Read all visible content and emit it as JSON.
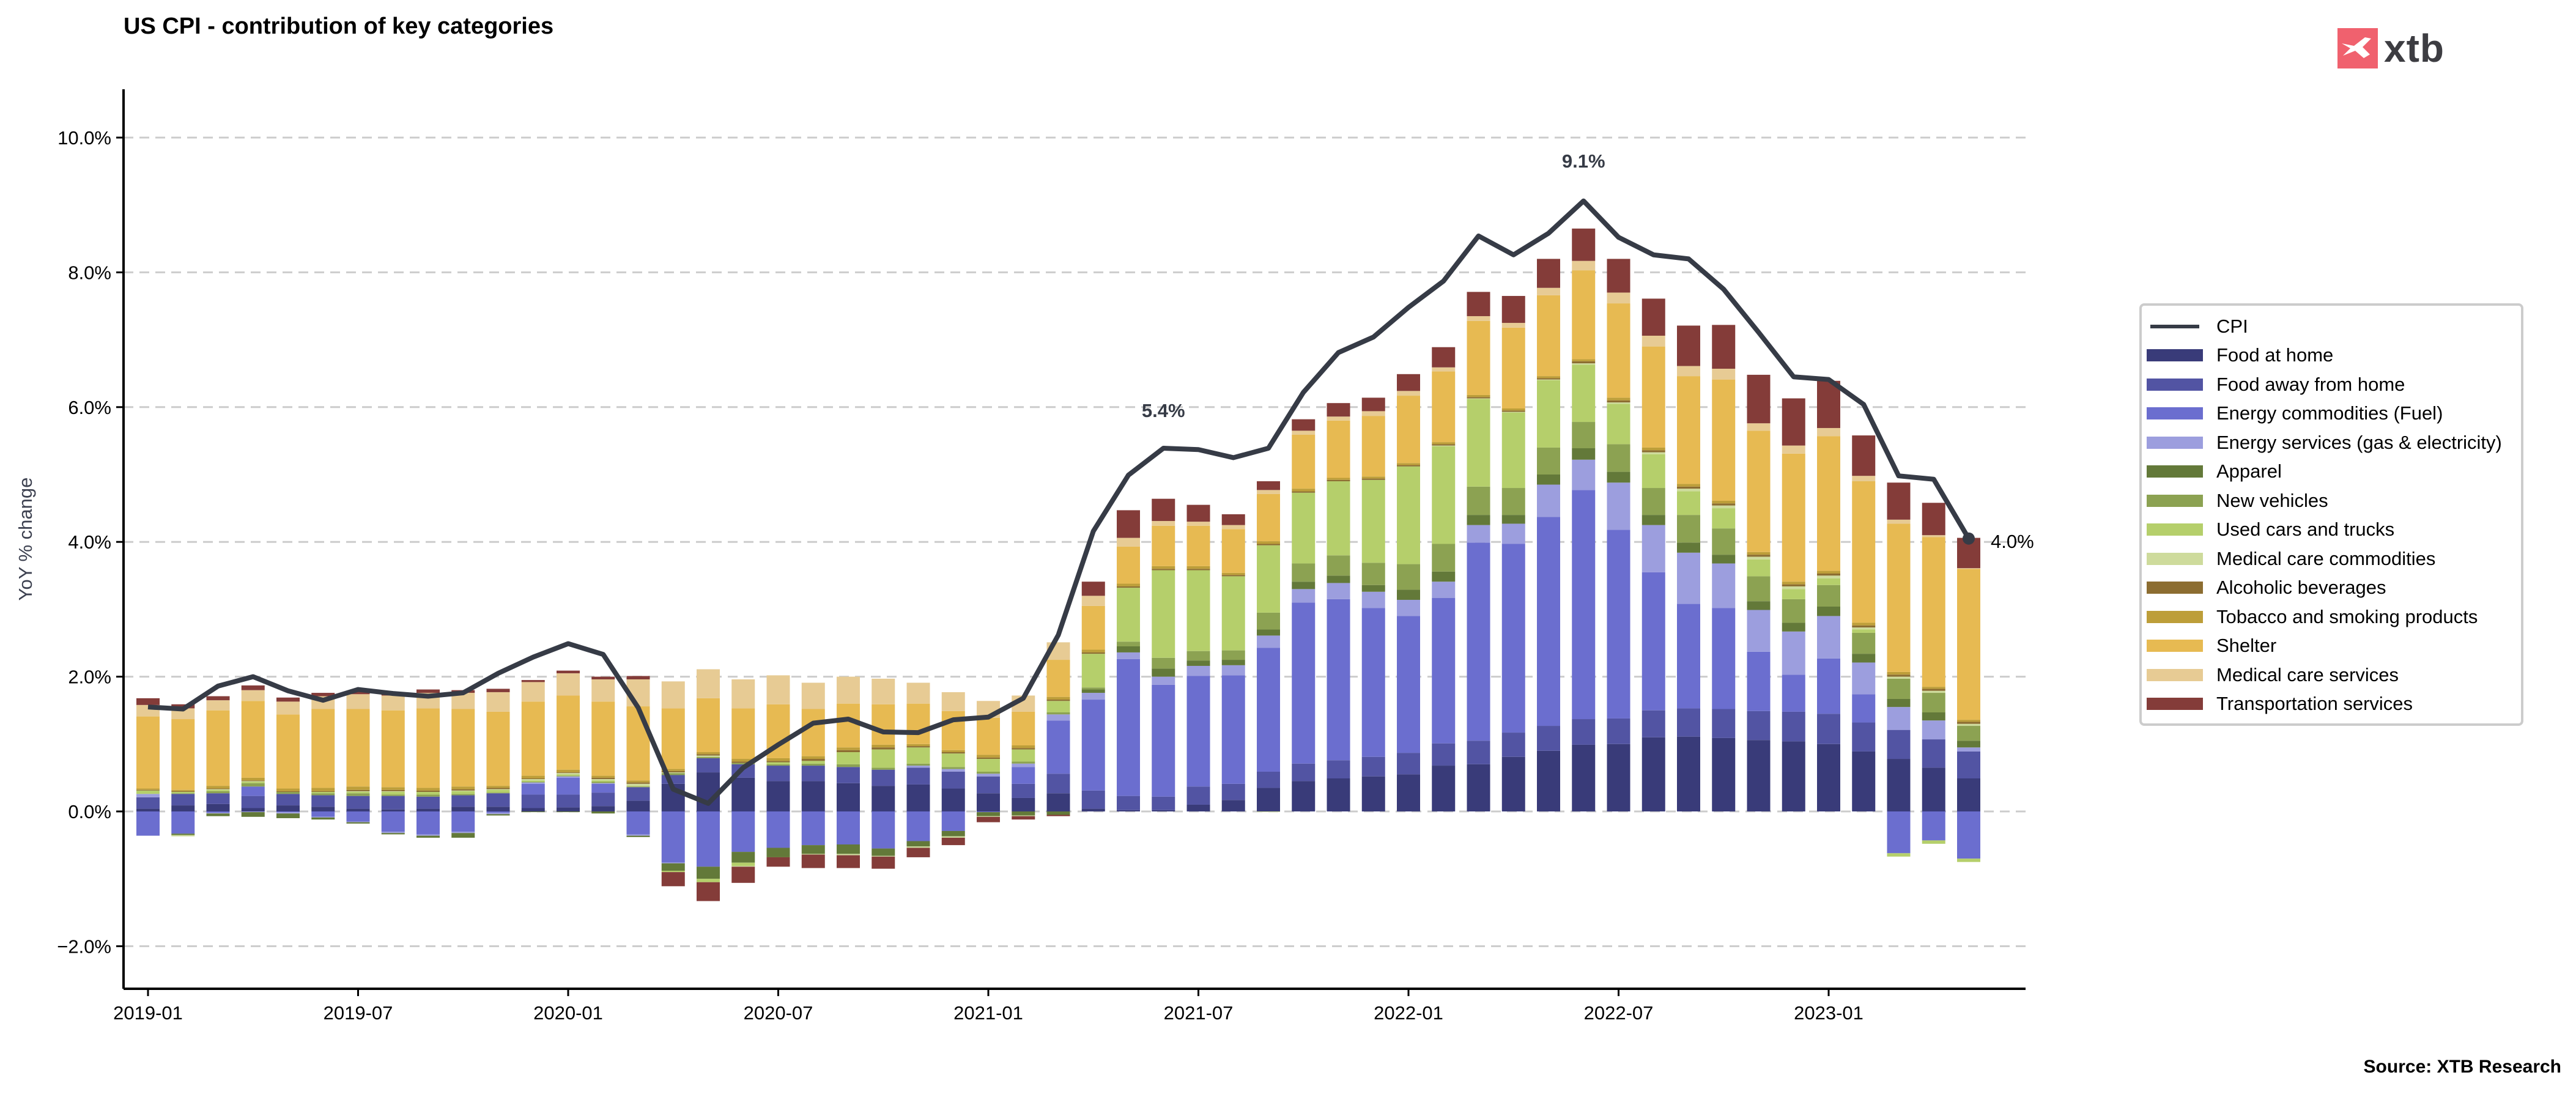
{
  "header": {
    "title": "US CPI - contribution of key categories",
    "logo_text": "xtb"
  },
  "footer": {
    "source": "Source: XTB Research"
  },
  "colors": {
    "cpi_line": "#363b46",
    "grid": "#cccccc",
    "logo_red": "#f0616e"
  },
  "chart_data": {
    "type": "bar",
    "stacked": true,
    "title": "US CPI - contribution of key categories",
    "xlabel": "",
    "ylabel": "YoY % change",
    "ylim": [
      -2.6,
      10.7
    ],
    "yticks": [
      -2,
      0,
      2,
      4,
      6,
      8,
      10
    ],
    "ytick_labels": [
      "−2.0%",
      "0.0%",
      "2.0%",
      "4.0%",
      "6.0%",
      "8.0%",
      "10.0%"
    ],
    "xtick_labels": [
      "2019-01",
      "2019-07",
      "2020-01",
      "2020-07",
      "2021-01",
      "2021-07",
      "2022-01",
      "2022-07",
      "2023-01"
    ],
    "grid": "horizontal dashed",
    "legend_position": "right",
    "categories": [
      "2019-01",
      "2019-02",
      "2019-03",
      "2019-04",
      "2019-05",
      "2019-06",
      "2019-07",
      "2019-08",
      "2019-09",
      "2019-10",
      "2019-11",
      "2019-12",
      "2020-01",
      "2020-02",
      "2020-03",
      "2020-04",
      "2020-05",
      "2020-06",
      "2020-07",
      "2020-08",
      "2020-09",
      "2020-10",
      "2020-11",
      "2020-12",
      "2021-01",
      "2021-02",
      "2021-03",
      "2021-04",
      "2021-05",
      "2021-06",
      "2021-07",
      "2021-08",
      "2021-09",
      "2021-10",
      "2021-11",
      "2021-12",
      "2022-01",
      "2022-02",
      "2022-03",
      "2022-04",
      "2022-05",
      "2022-06",
      "2022-07",
      "2022-08",
      "2022-09",
      "2022-10",
      "2022-11",
      "2022-12",
      "2023-01",
      "2023-02",
      "2023-03",
      "2023-04",
      "2023-05"
    ],
    "series": [
      {
        "name": "Food at home",
        "color": "#393b79",
        "values": [
          0.04,
          0.09,
          0.11,
          0.05,
          0.09,
          0.07,
          0.04,
          0.03,
          0.04,
          0.07,
          0.07,
          0.05,
          0.06,
          0.08,
          0.16,
          0.41,
          0.58,
          0.5,
          0.45,
          0.45,
          0.42,
          0.38,
          0.4,
          0.34,
          0.27,
          0.2,
          0.27,
          0.04,
          0.02,
          0.02,
          0.1,
          0.17,
          0.35,
          0.45,
          0.49,
          0.52,
          0.55,
          0.68,
          0.7,
          0.81,
          0.9,
          0.99,
          1.0,
          1.1,
          1.11,
          1.09,
          1.06,
          1.04,
          1.0,
          0.89,
          0.78,
          0.65,
          0.49
        ]
      },
      {
        "name": "Food away from home",
        "color": "#5254a3",
        "values": [
          0.17,
          0.17,
          0.16,
          0.18,
          0.17,
          0.17,
          0.19,
          0.2,
          0.18,
          0.17,
          0.2,
          0.2,
          0.19,
          0.2,
          0.2,
          0.13,
          0.21,
          0.2,
          0.23,
          0.23,
          0.24,
          0.24,
          0.25,
          0.25,
          0.25,
          0.21,
          0.29,
          0.27,
          0.21,
          0.2,
          0.27,
          0.24,
          0.24,
          0.26,
          0.27,
          0.29,
          0.32,
          0.33,
          0.35,
          0.36,
          0.37,
          0.38,
          0.38,
          0.4,
          0.42,
          0.43,
          0.43,
          0.44,
          0.45,
          0.43,
          0.43,
          0.42,
          0.4
        ]
      },
      {
        "name": "Energy commodities (Fuel)",
        "color": "#6b6ecf",
        "values": [
          -0.36,
          -0.33,
          -0.02,
          0.14,
          -0.01,
          -0.08,
          -0.15,
          -0.3,
          -0.34,
          -0.3,
          -0.02,
          0.16,
          0.25,
          0.13,
          -0.34,
          -0.76,
          -0.82,
          -0.6,
          -0.54,
          -0.5,
          -0.49,
          -0.55,
          -0.44,
          -0.29,
          -0.01,
          0.25,
          0.79,
          1.35,
          2.03,
          1.66,
          1.64,
          1.61,
          1.84,
          2.39,
          2.39,
          2.21,
          2.03,
          2.16,
          2.94,
          2.8,
          3.1,
          3.4,
          2.8,
          2.05,
          1.55,
          1.5,
          0.88,
          0.55,
          0.82,
          0.42,
          -0.62,
          -0.43,
          -0.7
        ]
      },
      {
        "name": "Energy services (gas & electricity)",
        "color": "#9c9ede",
        "values": [
          0.05,
          0.0,
          -0.01,
          -0.01,
          -0.02,
          -0.01,
          -0.01,
          -0.02,
          -0.02,
          -0.02,
          -0.02,
          0.02,
          0.02,
          0.01,
          -0.02,
          -0.01,
          0.0,
          0.0,
          0.0,
          0.0,
          0.0,
          0.0,
          0.03,
          0.04,
          0.04,
          0.05,
          0.09,
          0.1,
          0.1,
          0.12,
          0.15,
          0.15,
          0.18,
          0.2,
          0.24,
          0.24,
          0.24,
          0.24,
          0.26,
          0.3,
          0.48,
          0.45,
          0.7,
          0.7,
          0.76,
          0.66,
          0.62,
          0.64,
          0.63,
          0.47,
          0.34,
          0.28,
          0.06
        ]
      },
      {
        "name": "Apparel",
        "color": "#637939",
        "values": [
          0.0,
          -0.02,
          -0.04,
          -0.07,
          -0.07,
          -0.03,
          -0.02,
          -0.02,
          -0.03,
          -0.07,
          -0.02,
          -0.01,
          -0.01,
          -0.03,
          -0.02,
          -0.11,
          -0.18,
          -0.16,
          -0.14,
          -0.13,
          -0.14,
          -0.11,
          -0.08,
          -0.08,
          -0.06,
          -0.06,
          -0.05,
          0.05,
          0.09,
          0.12,
          0.08,
          0.08,
          0.09,
          0.11,
          0.11,
          0.1,
          0.15,
          0.15,
          0.15,
          0.13,
          0.15,
          0.17,
          0.16,
          0.15,
          0.15,
          0.13,
          0.13,
          0.13,
          0.14,
          0.13,
          0.12,
          0.12,
          0.1
        ]
      },
      {
        "name": "New vehicles",
        "color": "#8ca252",
        "values": [
          0.0,
          0.01,
          0.03,
          0.05,
          0.03,
          0.03,
          0.04,
          0.02,
          0.03,
          0.02,
          0.01,
          0.01,
          0.01,
          0.02,
          0.01,
          0.03,
          0.02,
          0.02,
          0.02,
          0.03,
          0.04,
          0.03,
          0.03,
          0.03,
          0.03,
          0.03,
          0.03,
          0.03,
          0.07,
          0.16,
          0.14,
          0.14,
          0.25,
          0.27,
          0.3,
          0.33,
          0.38,
          0.41,
          0.42,
          0.4,
          0.4,
          0.39,
          0.41,
          0.4,
          0.41,
          0.39,
          0.37,
          0.35,
          0.32,
          0.31,
          0.3,
          0.29,
          0.22
        ]
      },
      {
        "name": "Used cars and trucks",
        "color": "#b5cf6b",
        "values": [
          0.05,
          0.02,
          0.02,
          0.02,
          0.0,
          0.02,
          0.02,
          0.04,
          0.04,
          0.04,
          0.04,
          0.02,
          0.02,
          0.02,
          0.01,
          -0.02,
          -0.05,
          -0.05,
          0.03,
          0.04,
          0.18,
          0.27,
          0.24,
          0.2,
          0.19,
          0.18,
          0.17,
          0.5,
          0.8,
          1.3,
          1.2,
          1.1,
          1.0,
          1.05,
          1.1,
          1.23,
          1.45,
          1.45,
          1.3,
          1.12,
          1.0,
          0.85,
          0.6,
          0.5,
          0.35,
          0.3,
          0.25,
          0.15,
          0.1,
          0.05,
          -0.05,
          -0.05,
          -0.05
        ]
      },
      {
        "name": "Medical care commodities",
        "color": "#cedb9c",
        "values": [
          0.0,
          -0.02,
          0.01,
          0.01,
          0.0,
          0.0,
          0.01,
          0.01,
          0.0,
          0.01,
          0.01,
          0.02,
          0.02,
          0.02,
          0.03,
          0.01,
          0.02,
          -0.01,
          0.0,
          -0.01,
          -0.02,
          -0.01,
          -0.02,
          -0.02,
          -0.01,
          -0.01,
          0.0,
          0.0,
          0.0,
          0.0,
          0.0,
          0.0,
          -0.01,
          0.0,
          0.0,
          0.0,
          0.0,
          0.01,
          0.01,
          0.01,
          0.01,
          0.02,
          0.02,
          0.03,
          0.04,
          0.04,
          0.04,
          0.04,
          0.04,
          0.03,
          0.03,
          0.03,
          0.03
        ]
      },
      {
        "name": "Alcoholic beverages",
        "color": "#8c6d31",
        "values": [
          0.01,
          0.01,
          0.01,
          0.01,
          0.01,
          0.01,
          0.02,
          0.02,
          0.02,
          0.02,
          0.02,
          0.01,
          0.01,
          0.02,
          0.02,
          0.02,
          0.02,
          0.02,
          0.02,
          0.03,
          0.03,
          0.03,
          0.02,
          0.02,
          0.02,
          0.02,
          0.02,
          0.02,
          0.02,
          0.02,
          0.02,
          0.02,
          0.02,
          0.02,
          0.02,
          0.02,
          0.02,
          0.02,
          0.02,
          0.02,
          0.02,
          0.03,
          0.03,
          0.03,
          0.03,
          0.03,
          0.03,
          0.03,
          0.03,
          0.03,
          0.03,
          0.03,
          0.03
        ]
      },
      {
        "name": "Tobacco and smoking products",
        "color": "#bd9e39",
        "values": [
          0.02,
          0.02,
          0.04,
          0.04,
          0.04,
          0.05,
          0.05,
          0.04,
          0.04,
          0.04,
          0.03,
          0.04,
          0.04,
          0.03,
          0.03,
          0.03,
          0.03,
          0.04,
          0.04,
          0.04,
          0.04,
          0.04,
          0.03,
          0.03,
          0.04,
          0.04,
          0.04,
          0.04,
          0.04,
          0.04,
          0.04,
          0.03,
          0.04,
          0.04,
          0.03,
          0.03,
          0.03,
          0.03,
          0.03,
          0.03,
          0.03,
          0.03,
          0.04,
          0.04,
          0.04,
          0.04,
          0.04,
          0.04,
          0.04,
          0.04,
          0.04,
          0.03,
          0.03
        ]
      },
      {
        "name": "Shelter",
        "color": "#e7ba52",
        "values": [
          1.07,
          1.05,
          1.12,
          1.14,
          1.1,
          1.17,
          1.15,
          1.14,
          1.18,
          1.15,
          1.1,
          1.1,
          1.1,
          1.1,
          1.1,
          0.9,
          0.8,
          0.75,
          0.8,
          0.7,
          0.65,
          0.6,
          0.6,
          0.58,
          0.55,
          0.5,
          0.55,
          0.65,
          0.55,
          0.6,
          0.6,
          0.65,
          0.7,
          0.8,
          0.85,
          0.9,
          1.0,
          1.05,
          1.1,
          1.2,
          1.2,
          1.32,
          1.4,
          1.5,
          1.6,
          1.8,
          1.8,
          1.9,
          2.0,
          2.1,
          2.2,
          2.22,
          2.24
        ]
      },
      {
        "name": "Medical care services",
        "color": "#e7cb94",
        "values": [
          0.17,
          0.16,
          0.15,
          0.16,
          0.19,
          0.19,
          0.22,
          0.22,
          0.23,
          0.24,
          0.29,
          0.29,
          0.33,
          0.33,
          0.4,
          0.4,
          0.43,
          0.43,
          0.43,
          0.39,
          0.4,
          0.38,
          0.31,
          0.28,
          0.25,
          0.24,
          0.26,
          0.15,
          0.13,
          0.07,
          0.06,
          0.06,
          0.06,
          0.06,
          0.06,
          0.07,
          0.07,
          0.06,
          0.07,
          0.07,
          0.11,
          0.14,
          0.16,
          0.16,
          0.15,
          0.16,
          0.11,
          0.12,
          0.12,
          0.08,
          0.06,
          0.03,
          0.01
        ]
      },
      {
        "name": "Transportation services",
        "color": "#843c39",
        "values": [
          0.1,
          0.06,
          0.06,
          0.07,
          0.06,
          0.05,
          0.05,
          0.05,
          0.05,
          0.04,
          0.05,
          0.03,
          0.04,
          0.04,
          0.05,
          -0.21,
          -0.28,
          -0.24,
          -0.14,
          -0.2,
          -0.19,
          -0.18,
          -0.14,
          -0.11,
          -0.08,
          -0.05,
          -0.02,
          0.21,
          0.41,
          0.33,
          0.25,
          0.16,
          0.13,
          0.17,
          0.2,
          0.2,
          0.25,
          0.3,
          0.36,
          0.4,
          0.43,
          0.48,
          0.5,
          0.55,
          0.6,
          0.65,
          0.72,
          0.7,
          0.7,
          0.6,
          0.55,
          0.48,
          0.45
        ]
      }
    ],
    "line_series": {
      "name": "CPI",
      "color": "#363b46",
      "values": [
        1.55,
        1.52,
        1.86,
        2.0,
        1.79,
        1.65,
        1.81,
        1.75,
        1.71,
        1.76,
        2.05,
        2.29,
        2.49,
        2.33,
        1.54,
        0.33,
        0.12,
        0.65,
        0.99,
        1.31,
        1.37,
        1.18,
        1.17,
        1.36,
        1.4,
        1.68,
        2.62,
        4.16,
        4.99,
        5.39,
        5.37,
        5.25,
        5.39,
        6.22,
        6.81,
        7.04,
        7.48,
        7.87,
        8.54,
        8.26,
        8.58,
        9.06,
        8.52,
        8.26,
        8.2,
        7.75,
        7.11,
        6.45,
        6.41,
        6.04,
        4.98,
        4.93,
        4.05
      ]
    },
    "annotations": [
      {
        "label": "5.4%",
        "x": "2021-06",
        "y": 5.4
      },
      {
        "label": "9.1%",
        "x": "2022-06",
        "y": 9.1
      },
      {
        "label": "4.0%",
        "x": "2023-05",
        "y": 4.0
      }
    ]
  },
  "legend": {
    "items": [
      {
        "label": "CPI",
        "type": "line",
        "color": "#363b46"
      },
      {
        "label": "Food at home",
        "type": "patch",
        "color": "#393b79"
      },
      {
        "label": "Food away from home",
        "type": "patch",
        "color": "#5254a3"
      },
      {
        "label": "Energy commodities (Fuel)",
        "type": "patch",
        "color": "#6b6ecf"
      },
      {
        "label": "Energy services (gas & electricity)",
        "type": "patch",
        "color": "#9c9ede"
      },
      {
        "label": "Apparel",
        "type": "patch",
        "color": "#637939"
      },
      {
        "label": "New vehicles",
        "type": "patch",
        "color": "#8ca252"
      },
      {
        "label": "Used cars and trucks",
        "type": "patch",
        "color": "#b5cf6b"
      },
      {
        "label": "Medical care commodities",
        "type": "patch",
        "color": "#cedb9c"
      },
      {
        "label": "Alcoholic beverages",
        "type": "patch",
        "color": "#8c6d31"
      },
      {
        "label": "Tobacco and smoking products",
        "type": "patch",
        "color": "#bd9e39"
      },
      {
        "label": "Shelter",
        "type": "patch",
        "color": "#e7ba52"
      },
      {
        "label": "Medical care services",
        "type": "patch",
        "color": "#e7cb94"
      },
      {
        "label": "Transportation services",
        "type": "patch",
        "color": "#843c39"
      }
    ]
  }
}
